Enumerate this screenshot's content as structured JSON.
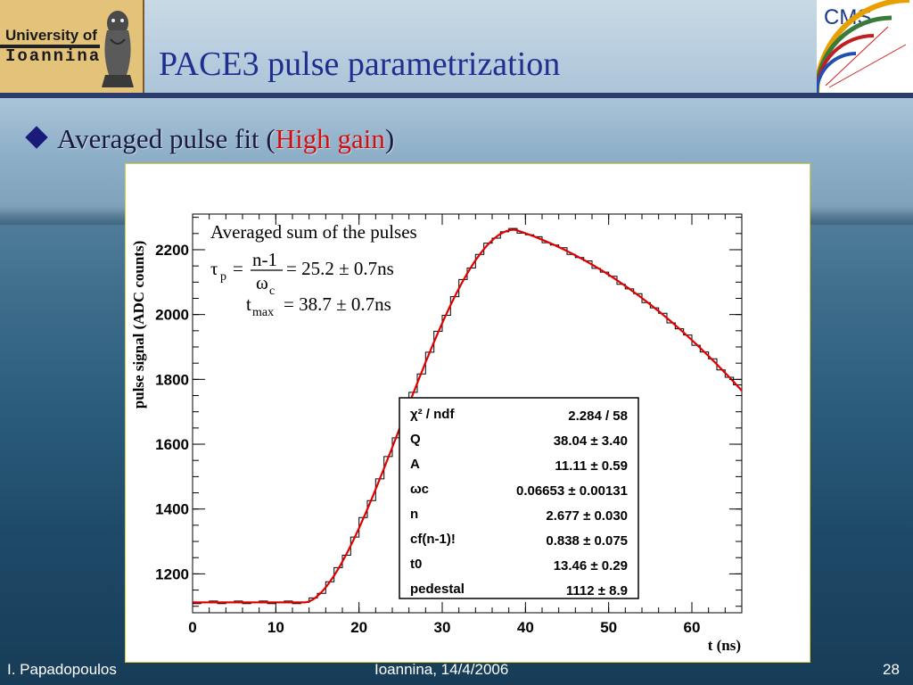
{
  "header": {
    "title": "PACE3 pulse parametrization",
    "logo_left_line1": "University of",
    "logo_left_line2": "Ioannina",
    "logo_right": "CMS"
  },
  "bullet": {
    "prefix": "Averaged pulse fit (",
    "highlight": "High gain",
    "suffix": ")"
  },
  "footer": {
    "left": "I. Papadopoulos",
    "center": "Ioannina, 14/4/2006",
    "right": "28"
  },
  "colors": {
    "title": "#1f2f8f",
    "highlight": "#d01010",
    "fit_curve": "#e00000",
    "histogram": "#000000"
  },
  "chart_data": {
    "type": "line",
    "xlabel": "t (ns)",
    "ylabel": "pulse signal (ADC counts)",
    "xlim": [
      0,
      66
    ],
    "ylim": [
      1080,
      2310
    ],
    "xticks": [
      0,
      10,
      20,
      30,
      40,
      50,
      60
    ],
    "yticks": [
      1200,
      1400,
      1600,
      1800,
      2000,
      2200
    ],
    "grid": false,
    "legend_placement": "none",
    "annotations": {
      "line1": "Averaged sum of the pulses",
      "tau_sym": "τ",
      "tau_sub": "p",
      "eq": "=",
      "frac_num": "n-1",
      "frac_den_sym": "ω",
      "frac_den_sub": "c",
      "tau_value": "= 25.2 ± 0.7ns",
      "tmax_sym": "t",
      "tmax_sub": "max",
      "tmax_value": "= 38.7 ± 0.7ns"
    },
    "stats_box": [
      {
        "name": "χ² / ndf",
        "value": "2.284 / 58"
      },
      {
        "name": "Q",
        "value": "38.04 ± 3.40"
      },
      {
        "name": "A",
        "value": "11.11 ± 0.59"
      },
      {
        "name": "ωc",
        "value": "0.06653 ± 0.00131"
      },
      {
        "name": "n",
        "value": "2.677 ± 0.030"
      },
      {
        "name": "cf(n-1)!",
        "value": "0.838 ± 0.075"
      },
      {
        "name": "t0",
        "value": "13.46 ± 0.29"
      },
      {
        "name": "pedestal",
        "value": "1112 ± 8.9"
      }
    ],
    "fit": {
      "pedestal": 1112,
      "t0": 13.46,
      "tmax": 38.7,
      "peak": 2262,
      "end_x": 66,
      "end_y": 1765
    },
    "histogram": {
      "bin_width": 1,
      "start_x": 0,
      "y_end": 1760
    }
  }
}
